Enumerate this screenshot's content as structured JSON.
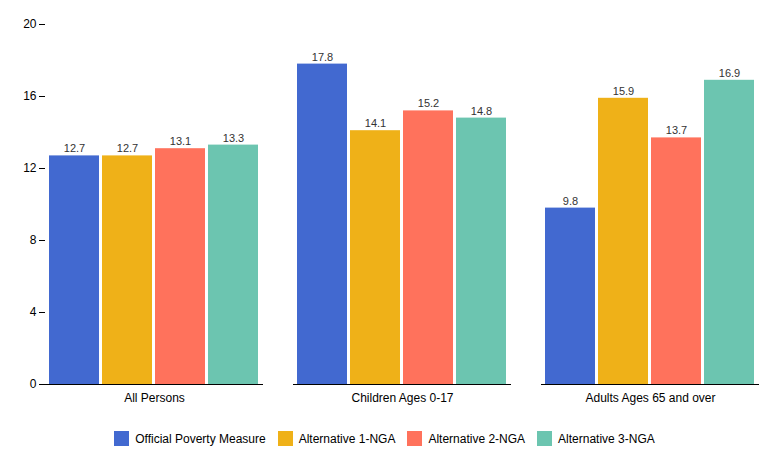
{
  "chart_data": {
    "type": "bar",
    "categories": [
      "All Persons",
      "Children Ages 0-17",
      "Adults Ages 65 and over"
    ],
    "series": [
      {
        "name": "Official Poverty Measure",
        "values": [
          12.7,
          17.8,
          9.8
        ]
      },
      {
        "name": "Alternative 1-NGA",
        "values": [
          12.7,
          14.1,
          15.9
        ]
      },
      {
        "name": "Alternative 2-NGA",
        "values": [
          13.1,
          15.2,
          13.7
        ]
      },
      {
        "name": "Alternative 3-NGA",
        "values": [
          13.3,
          14.8,
          16.9
        ]
      }
    ],
    "ylim": [
      0,
      20
    ],
    "yticks": [
      0,
      4,
      8,
      12,
      16,
      20
    ],
    "data_labels": true,
    "grid": false,
    "legend": "bottom"
  }
}
